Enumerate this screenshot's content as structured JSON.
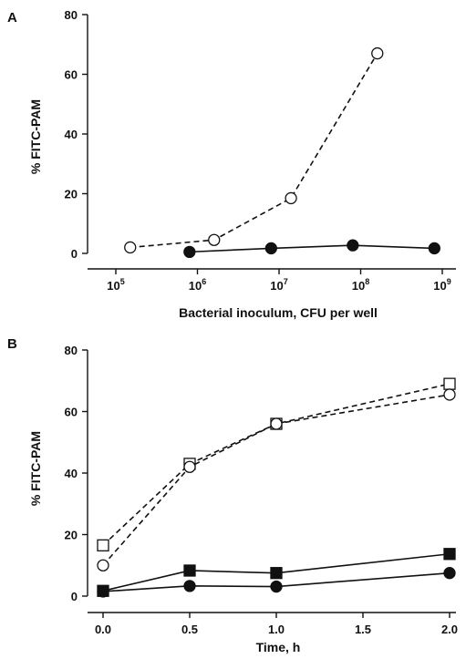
{
  "chart_data": [
    {
      "panel": "A",
      "type": "line",
      "xscale": "log",
      "xlim": [
        100000,
        1000000000
      ],
      "ylim": [
        0,
        80
      ],
      "xlabel": "Bacterial inoculum, CFU per well",
      "ylabel": "% FITC-PAM",
      "yticks": [
        0,
        20,
        40,
        60,
        80
      ],
      "xticks": [
        {
          "value": 100000,
          "base": "10",
          "exp": "5"
        },
        {
          "value": 1000000,
          "base": "10",
          "exp": "6"
        },
        {
          "value": 10000000,
          "base": "10",
          "exp": "7"
        },
        {
          "value": 100000000,
          "base": "10",
          "exp": "8"
        },
        {
          "value": 1000000000,
          "base": "10",
          "exp": "9"
        }
      ],
      "series": [
        {
          "marker": "open-circle",
          "dash": true,
          "points": [
            [
              150000,
              2
            ],
            [
              1600000,
              4.5
            ],
            [
              14000000,
              18.5
            ],
            [
              160000000,
              67
            ]
          ]
        },
        {
          "marker": "filled-circle",
          "dash": false,
          "points": [
            [
              800000,
              0.5
            ],
            [
              8000000,
              1.7
            ],
            [
              80000000,
              2.7
            ],
            [
              800000000,
              1.7
            ]
          ]
        }
      ]
    },
    {
      "panel": "B",
      "type": "line",
      "xscale": "linear",
      "xlim": [
        -0.1,
        2.1
      ],
      "ylim": [
        0,
        80
      ],
      "xlabel": "Time, h",
      "ylabel": "% FITC-PAM",
      "yticks": [
        0,
        20,
        40,
        60,
        80
      ],
      "xticks": [
        {
          "value": 0,
          "label": "0.0"
        },
        {
          "value": 0.5,
          "label": "0.5"
        },
        {
          "value": 1,
          "label": "1.0"
        },
        {
          "value": 1.5,
          "label": "1.5"
        },
        {
          "value": 2,
          "label": "2.0"
        }
      ],
      "series": [
        {
          "marker": "open-square",
          "dash": true,
          "points": [
            [
              0,
              16.5
            ],
            [
              0.5,
              43
            ],
            [
              1.0,
              56
            ],
            [
              2.0,
              69
            ]
          ]
        },
        {
          "marker": "open-circle",
          "dash": true,
          "points": [
            [
              0,
              10
            ],
            [
              0.5,
              42
            ],
            [
              1.0,
              56
            ],
            [
              2.0,
              65.5
            ]
          ]
        },
        {
          "marker": "filled-square",
          "dash": false,
          "points": [
            [
              0,
              1.7
            ],
            [
              0.5,
              8.3
            ],
            [
              1.0,
              7.5
            ],
            [
              2.0,
              13.7
            ]
          ]
        },
        {
          "marker": "filled-circle",
          "dash": false,
          "points": [
            [
              0,
              1.5
            ],
            [
              0.5,
              3.3
            ],
            [
              1.0,
              3.1
            ],
            [
              2.0,
              7.5
            ]
          ]
        }
      ]
    }
  ]
}
